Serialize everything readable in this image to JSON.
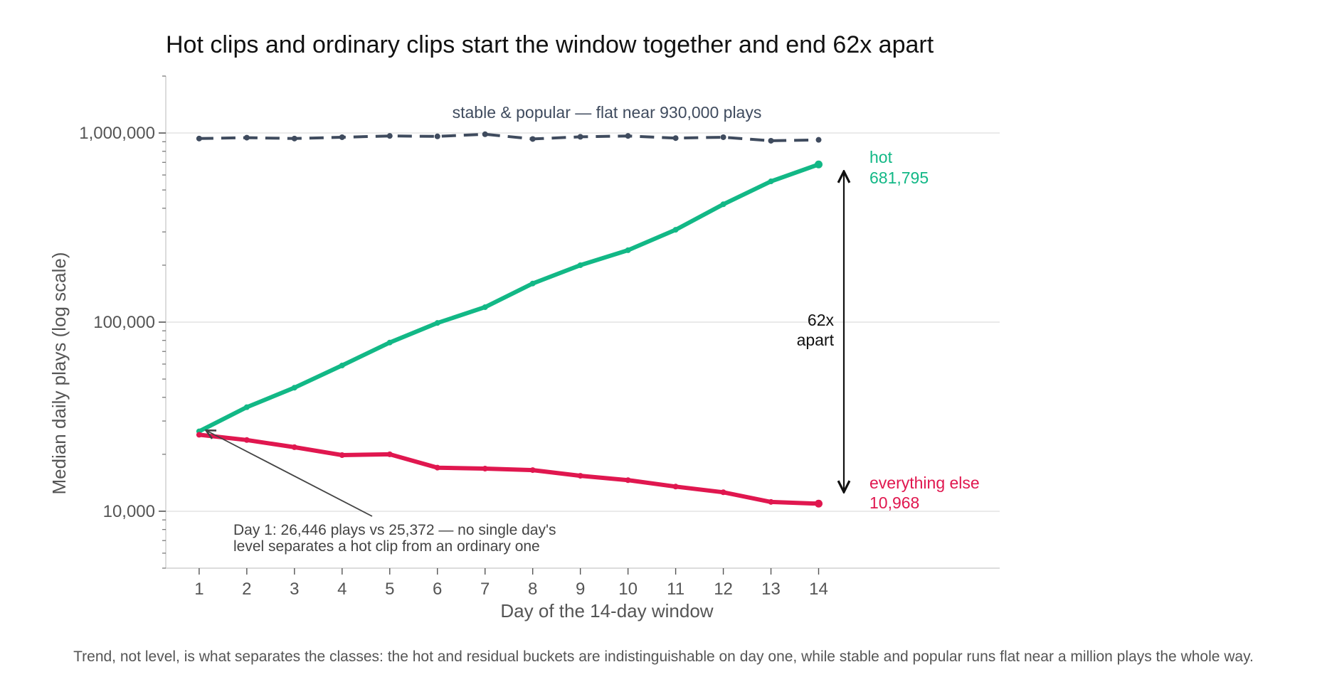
{
  "chart_data": {
    "type": "line",
    "title": "Hot clips and ordinary clips start the window together and end 62x apart",
    "xlabel": "Day of the 14-day window",
    "ylabel": "Median daily plays (log scale)",
    "y_scale": "log",
    "ylim": [
      5000,
      2000000
    ],
    "xlim": [
      0.3,
      17.8
    ],
    "grid": "horizontal at major ticks",
    "x": [
      1,
      2,
      3,
      4,
      5,
      6,
      7,
      8,
      9,
      10,
      11,
      12,
      13,
      14
    ],
    "x_tick_labels": [
      "1",
      "2",
      "3",
      "4",
      "5",
      "6",
      "7",
      "8",
      "9",
      "10",
      "11",
      "12",
      "13",
      "14"
    ],
    "y_ticks": [
      10000,
      100000,
      1000000
    ],
    "y_tick_labels": [
      "10,000",
      "100,000",
      "1,000,000"
    ],
    "series": [
      {
        "name": "stable & popular",
        "color": "#3f4b5e",
        "style": "dashed",
        "values": [
          935000,
          945000,
          935000,
          950000,
          965000,
          960000,
          985000,
          930000,
          955000,
          965000,
          940000,
          950000,
          910000,
          920000
        ]
      },
      {
        "name": "hot",
        "color": "#12b886",
        "style": "solid",
        "values": [
          26446,
          35500,
          45000,
          59000,
          78000,
          99000,
          120000,
          160000,
          200000,
          240000,
          308000,
          420000,
          555000,
          681795
        ]
      },
      {
        "name": "everything else",
        "color": "#e0174f",
        "style": "solid",
        "values": [
          25372,
          23800,
          21800,
          19800,
          20000,
          17000,
          16800,
          16500,
          15400,
          14600,
          13500,
          12600,
          11200,
          10968
        ]
      }
    ],
    "annotations": {
      "stable_label": "stable & popular — flat near 930,000 plays",
      "hot_label": "hot",
      "hot_value": "681,795",
      "else_label": "everything else",
      "else_value": "10,968",
      "gap_line1": "62x",
      "gap_line2": "apart",
      "day1_line1": "Day 1: 26,446 plays vs 25,372 — no single day's",
      "day1_line2": "level separates a hot clip from an ordinary one"
    }
  },
  "caption": "Trend, not level, is what separates the classes: the hot and residual buckets are indistinguishable on day one, while stable and popular runs flat near a million plays the whole way."
}
